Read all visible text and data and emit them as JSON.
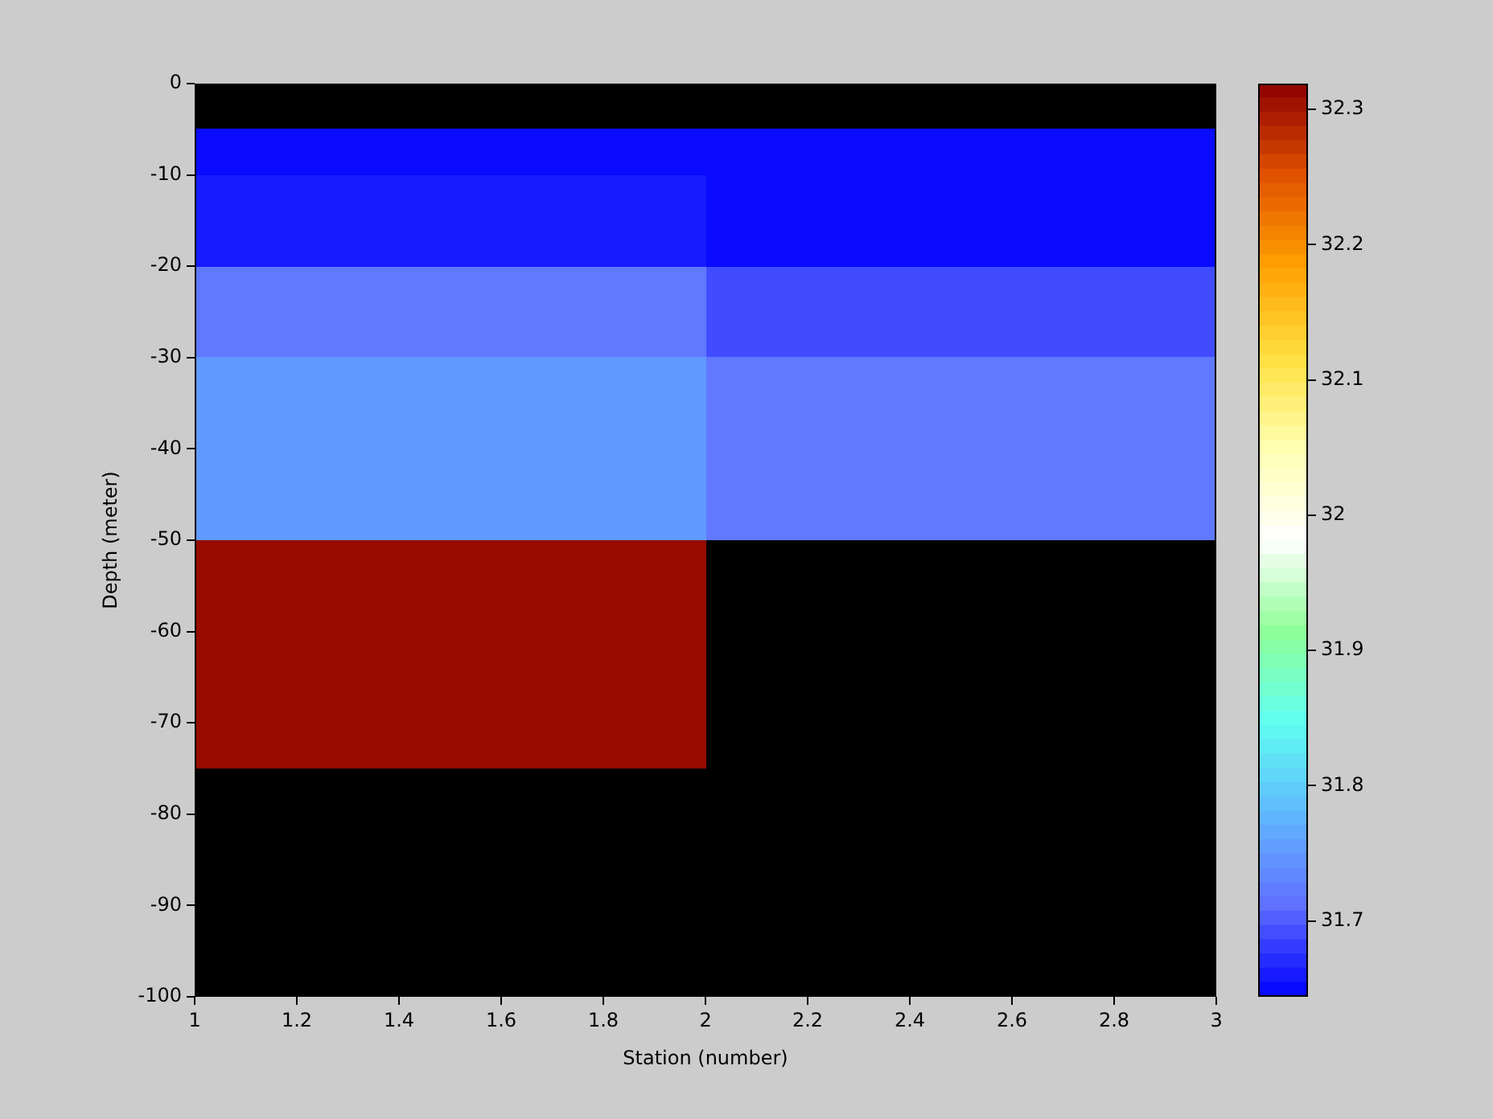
{
  "chart_data": {
    "type": "heatmap",
    "xlabel": "Station (number)",
    "ylabel": "Depth (meter)",
    "x": [
      1.5,
      2.5
    ],
    "y": [
      -7.5,
      -12.5,
      -17.5,
      -22.5,
      -27.5,
      -32.5,
      -37.5,
      -42.5,
      -47.5,
      -52.5,
      -57.5,
      -62.5,
      -67.5,
      -72.5
    ],
    "cells": [
      [
        31.65,
        31.65
      ],
      [
        31.66,
        31.65
      ],
      [
        31.66,
        31.65
      ],
      [
        31.72,
        31.69
      ],
      [
        31.72,
        31.69
      ],
      [
        31.75,
        31.72
      ],
      [
        31.75,
        31.72
      ],
      [
        31.75,
        31.72
      ],
      [
        31.75,
        31.72
      ],
      [
        32.31,
        null
      ],
      [
        32.31,
        null
      ],
      [
        32.31,
        null
      ],
      [
        32.31,
        null
      ],
      [
        32.31,
        null
      ]
    ],
    "colors": [
      "#0000ff",
      "#6070ff",
      "#60b8ff",
      "#60fff0",
      "#90ff98",
      "#ffffff",
      "#ffffb0",
      "#ffe040",
      "#ffa000",
      "#e05000",
      "#8c0000"
    ],
    "xlim": [
      1,
      3
    ],
    "xticks": [
      1,
      1.2,
      1.4,
      1.6,
      1.8,
      2,
      2.2,
      2.4,
      2.6,
      2.8,
      3
    ],
    "ylim": [
      -100,
      0
    ],
    "yticks": [
      -100,
      -90,
      -80,
      -70,
      -60,
      -50,
      -40,
      -30,
      -20,
      -10,
      0
    ],
    "clim": [
      31.644,
      32.319
    ],
    "cticks": [
      31.7,
      31.8,
      31.9,
      32,
      32.1,
      32.2,
      32.3
    ],
    "grid": false,
    "legend": false
  }
}
